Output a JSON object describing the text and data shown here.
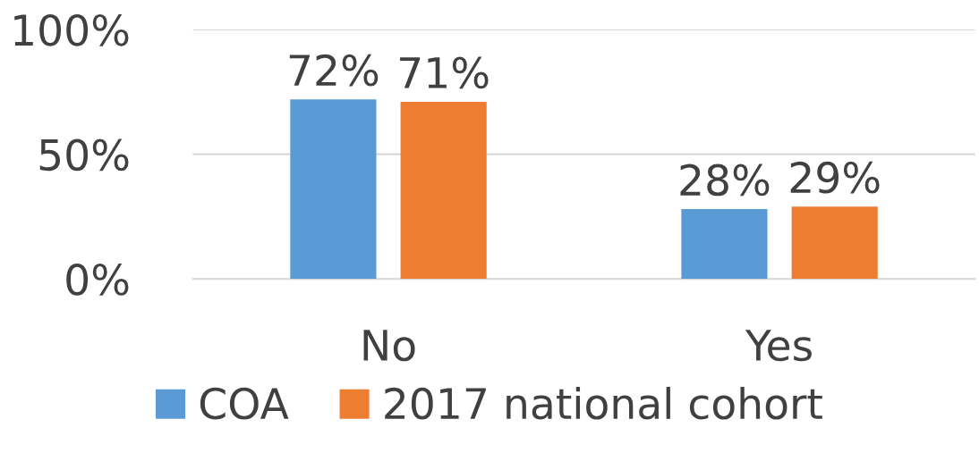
{
  "chart_data": {
    "type": "bar",
    "categories": [
      "No",
      "Yes"
    ],
    "series": [
      {
        "name": "COA",
        "color": "#5b9bd5",
        "values": [
          72,
          28
        ],
        "value_labels": [
          "72%",
          "28%"
        ]
      },
      {
        "name": "2017 national cohort",
        "color": "#ed7d31",
        "values": [
          71,
          29
        ],
        "value_labels": [
          "71%",
          "29%"
        ]
      }
    ],
    "ylim": [
      0,
      100
    ],
    "yticks": [
      {
        "value": 0,
        "label": "0%"
      },
      {
        "value": 50,
        "label": "50%"
      },
      {
        "value": 100,
        "label": "100%"
      }
    ],
    "grid": "y",
    "legend": "bottom"
  }
}
